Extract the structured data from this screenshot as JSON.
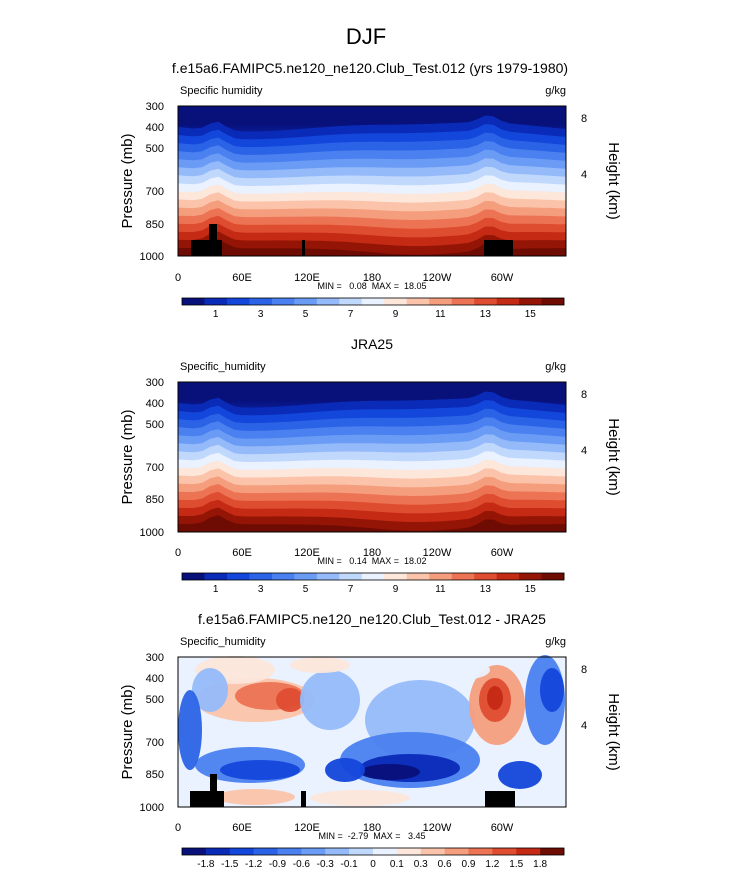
{
  "figure": {
    "season": "DJF",
    "colorbar_abs_labels": [
      "1",
      "3",
      "5",
      "7",
      "9",
      "11",
      "13",
      "15"
    ],
    "colorbar_diff_labels": [
      "-1.8",
      "-1.5",
      "-1.2",
      "-0.9",
      "-0.6",
      "-0.3",
      "-0.1",
      "0",
      "0.1",
      "0.3",
      "0.6",
      "0.9",
      "1.2",
      "1.5",
      "1.8"
    ],
    "colors_abs": [
      "#08107A",
      "#0A2AB8",
      "#1346DA",
      "#2B63E6",
      "#4A80EF",
      "#6B9CF5",
      "#95BAFA",
      "#C1D8FD",
      "#EAF1FF",
      "#FDE6DA",
      "#FBC4AA",
      "#F59E7E",
      "#EC7454",
      "#DF4D31",
      "#C42A14",
      "#941505",
      "#6E0B02"
    ],
    "colors_diff": [
      "#08107A",
      "#0A2AB8",
      "#1346DA",
      "#2B63E6",
      "#4A80EF",
      "#6B9CF5",
      "#95BAFA",
      "#C1D8FD",
      "#EAF1FF",
      "#FDE6DA",
      "#FBC4AA",
      "#F59E7E",
      "#EC7454",
      "#DF4D31",
      "#C42A14",
      "#6E0B02"
    ]
  },
  "chart_data": [
    {
      "type": "heatmap",
      "title": "f.e15a6.FAMIPC5.ne120_ne120.Club_Test.012 (yrs 1979-1980)",
      "left_label": "Specific humidity",
      "units": "g/kg",
      "ylabel": "Pressure (mb)",
      "y2label": "Height (km)",
      "yticks": [
        "300",
        "400",
        "500",
        "700",
        "850",
        "1000"
      ],
      "y2ticks": [
        "8",
        "4"
      ],
      "xticks": [
        "0",
        "60E",
        "120E",
        "180",
        "120W",
        "60W"
      ],
      "stats": "MIN =   0.08  MAX =  18.05",
      "min": 0.08,
      "max": 18.05,
      "levels": [
        1,
        2,
        3,
        4,
        5,
        6,
        7,
        8,
        9,
        10,
        11,
        12,
        13,
        14,
        15,
        16
      ],
      "xlim": [
        0,
        360
      ],
      "ylim": [
        1000,
        300
      ]
    },
    {
      "type": "heatmap",
      "title": "JRA25",
      "left_label": "Specific_humidity",
      "units": "g/kg",
      "ylabel": "Pressure (mb)",
      "y2label": "Height (km)",
      "yticks": [
        "300",
        "400",
        "500",
        "700",
        "850",
        "1000"
      ],
      "y2ticks": [
        "8",
        "4"
      ],
      "xticks": [
        "0",
        "60E",
        "120E",
        "180",
        "120W",
        "60W"
      ],
      "stats": "MIN =   0.14  MAX =  18.02",
      "min": 0.14,
      "max": 18.02,
      "levels": [
        1,
        2,
        3,
        4,
        5,
        6,
        7,
        8,
        9,
        10,
        11,
        12,
        13,
        14,
        15,
        16
      ],
      "xlim": [
        0,
        360
      ],
      "ylim": [
        1000,
        300
      ]
    },
    {
      "type": "heatmap",
      "title": "f.e15a6.FAMIPC5.ne120_ne120.Club_Test.012 - JRA25",
      "left_label": "Specific_humidity",
      "units": "g/kg",
      "ylabel": "Pressure (mb)",
      "y2label": "Height (km)",
      "yticks": [
        "300",
        "400",
        "500",
        "700",
        "850",
        "1000"
      ],
      "y2ticks": [
        "8",
        "4"
      ],
      "xticks": [
        "0",
        "60E",
        "120E",
        "180",
        "120W",
        "60W"
      ],
      "stats": "MIN =  -2.79  MAX =   3.45",
      "min": -2.79,
      "max": 3.45,
      "levels": [
        -1.8,
        -1.5,
        -1.2,
        -0.9,
        -0.6,
        -0.3,
        -0.1,
        0,
        0.1,
        0.3,
        0.6,
        0.9,
        1.2,
        1.5,
        1.8
      ],
      "xlim": [
        0,
        360
      ],
      "ylim": [
        1000,
        300
      ]
    }
  ]
}
